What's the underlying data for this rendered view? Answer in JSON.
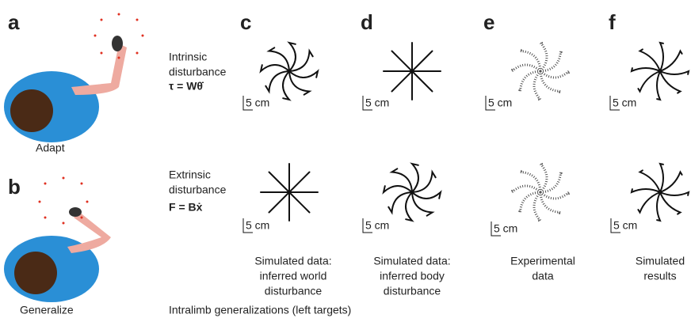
{
  "panels": [
    "a",
    "b",
    "c",
    "d",
    "e",
    "f"
  ],
  "conditions": {
    "adapt": "Adapt",
    "generalize": "Generalize"
  },
  "rows": [
    {
      "label_lines": [
        "Intrinsic",
        "disturbance"
      ],
      "formula": "τ = Wθ̇"
    },
    {
      "label_lines": [
        "Extrinsic",
        "disturbance"
      ],
      "formula": "F = Bẋ"
    }
  ],
  "scale_labels": [
    "5 cm",
    "5 cm",
    "5 cm",
    "5 cm",
    "5 cm",
    "5 cm",
    "5 cm",
    "5 cm"
  ],
  "columns": [
    {
      "caption_lines": [
        "Simulated data:",
        "inferred world",
        "disturbance"
      ]
    },
    {
      "caption_lines": [
        "Simulated data:",
        "inferred body",
        "disturbance"
      ]
    },
    {
      "caption_lines": [
        "Experimental",
        "data"
      ]
    },
    {
      "caption_lines": [
        "Simulated",
        "results"
      ]
    }
  ],
  "footer": "Intralimb generalizations (left targets)"
}
